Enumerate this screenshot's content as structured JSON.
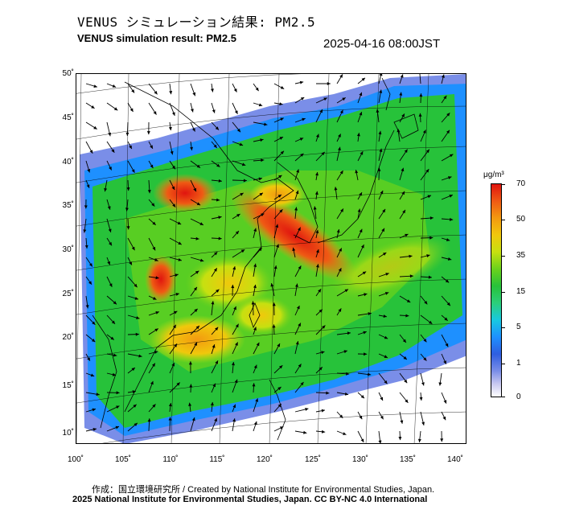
{
  "header": {
    "title_jp": "VENUS シミュレーション結果: PM2.5",
    "title_en": "VENUS simulation result: PM2.5",
    "timestamp": "2025-04-16 08:00JST"
  },
  "map": {
    "lat_ticks": [
      "50˚",
      "45˚",
      "40˚",
      "35˚",
      "30˚",
      "25˚",
      "20˚",
      "15˚",
      "10˚"
    ],
    "lon_ticks": [
      "100˚",
      "105˚",
      "110˚",
      "115˚",
      "120˚",
      "125˚",
      "130˚",
      "135˚",
      "140˚"
    ],
    "lat_values": [
      50,
      45,
      40,
      35,
      30,
      25,
      20,
      15,
      10
    ],
    "lon_values": [
      100,
      105,
      110,
      115,
      120,
      125,
      130,
      135,
      140
    ],
    "extent": {
      "lon_min": 100,
      "lon_max": 141,
      "lat_min": 9,
      "lat_max": 51
    }
  },
  "colorbar": {
    "unit": "μg/m³",
    "labels": [
      "70",
      "50",
      "35",
      "15",
      "5",
      "1",
      "0"
    ],
    "values": [
      70,
      50,
      35,
      15,
      5,
      1,
      0
    ],
    "colors": [
      "#ffffff",
      "#7a8ee8",
      "#1e90ff",
      "#27c23a",
      "#f0c80c",
      "#ef5a14",
      "#e0150f"
    ]
  },
  "footer": {
    "credit": "作成：国立環境研究所 / Created by National Institute for Environmental Studies, Japan.",
    "license": "2025 National Institute for Environmental Studies, Japan. CC BY-NC 4.0 International"
  }
}
